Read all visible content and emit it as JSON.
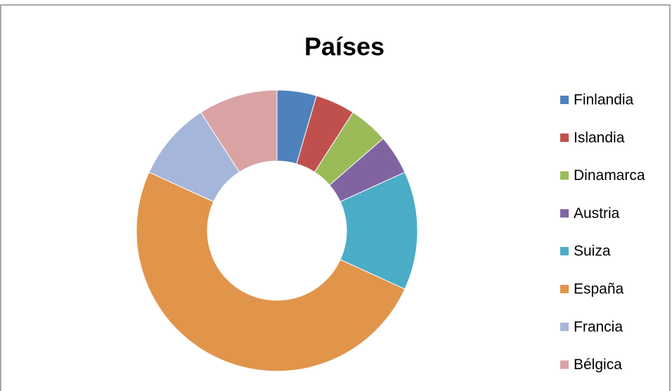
{
  "chart_data": {
    "type": "donut",
    "title": "Países",
    "categories": [
      "Finlandia",
      "Islandia",
      "Dinamarca",
      "Austria",
      "Suiza",
      "España",
      "Francia",
      "Bélgica"
    ],
    "values": [
      1,
      1,
      1,
      1,
      3,
      11,
      2,
      2
    ],
    "colors": [
      "#4f81bd",
      "#c0504d",
      "#9bbb59",
      "#8064a2",
      "#4bacc6",
      "#e0954b",
      "#a5b6da",
      "#d9a3a4"
    ],
    "legend": "right"
  }
}
